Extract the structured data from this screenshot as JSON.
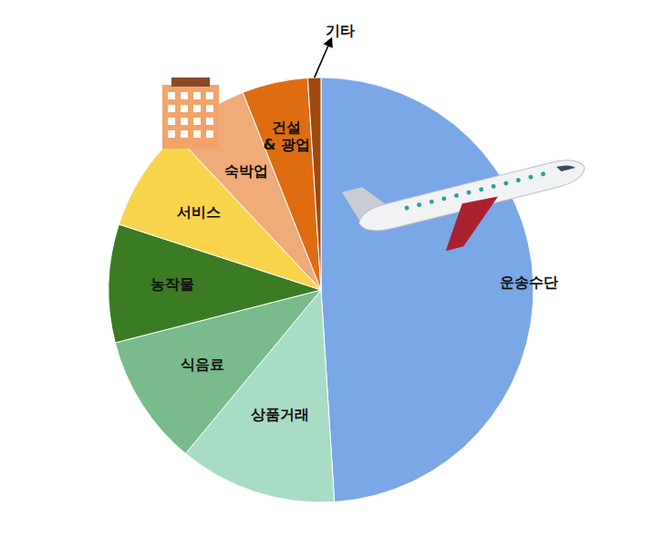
{
  "chart_data": {
    "type": "pie",
    "categories": [
      "운송수단",
      "상품거래",
      "식음료",
      "농작물",
      "서비스",
      "숙박업",
      "건설 & 광업",
      "기타"
    ],
    "values": [
      49,
      12,
      10,
      9,
      8,
      6,
      5,
      1
    ],
    "colors": [
      "#7aa7e6",
      "#a8dcc4",
      "#79bb8a",
      "#3b7b24",
      "#f8d44c",
      "#efab78",
      "#e06c12",
      "#a04a10"
    ]
  }
}
